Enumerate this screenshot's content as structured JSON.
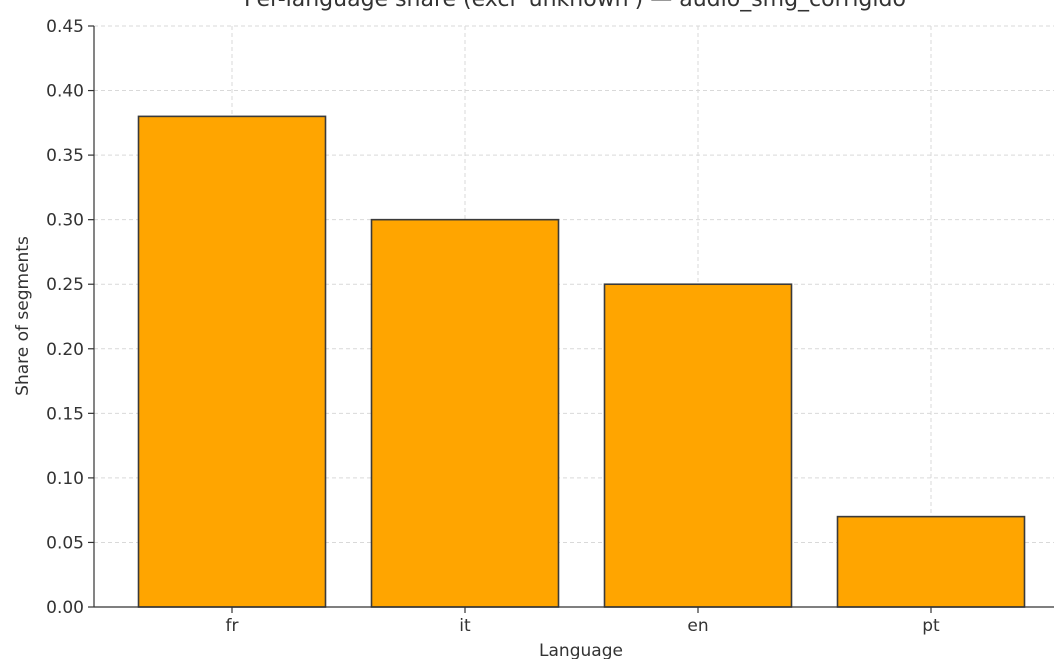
{
  "chart_data": {
    "type": "bar",
    "title": "Per-language share (excl 'unknown') — audio_smg_corrigido",
    "xlabel": "Language",
    "ylabel": "Share of segments",
    "categories": [
      "fr",
      "it",
      "en",
      "pt"
    ],
    "values": [
      0.38,
      0.3,
      0.25,
      0.07
    ],
    "ylim": [
      0,
      0.45
    ],
    "yticks": [
      "0.00",
      "0.05",
      "0.10",
      "0.15",
      "0.20",
      "0.25",
      "0.30",
      "0.35",
      "0.40",
      "0.45"
    ],
    "grid": true,
    "bar_color": "#FFA500",
    "bar_edge_color": "#3a3a3a",
    "legend": "none"
  }
}
